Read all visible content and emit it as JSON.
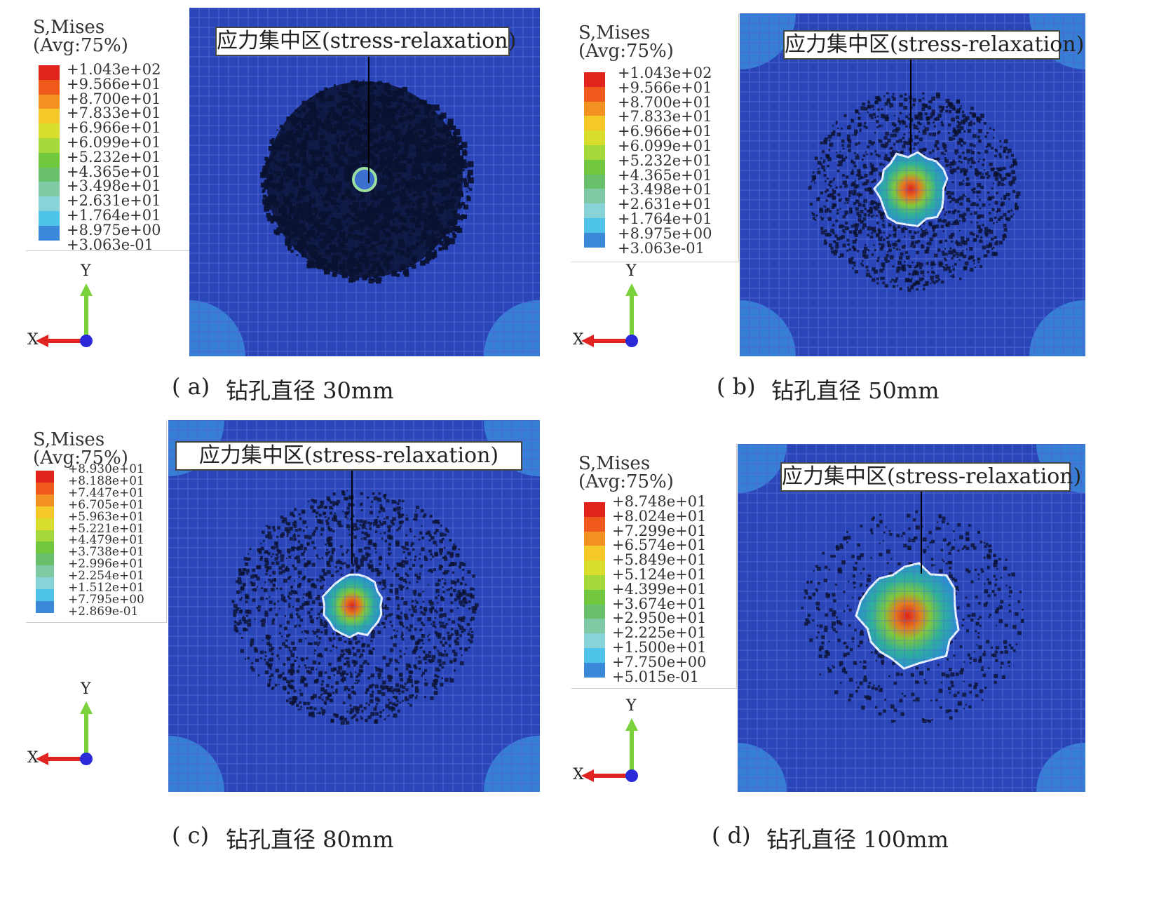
{
  "annotation": "应力集中区(stress-relaxation)",
  "axis": {
    "x": "X",
    "y": "Y"
  },
  "colors": {
    "mesh_bg": "#2a45b8",
    "mesh_line": "#4d66d6",
    "light_region": "#3a8ad8",
    "dark_dots": "#0b1230",
    "outline": "#e8f3ff",
    "arrow_x": "#e0241f",
    "arrow_y": "#7bd13c",
    "axis_origin": "#2a2ad8",
    "legend_scale": [
      "#e0231c",
      "#ef5a1c",
      "#f59022",
      "#f5c82a",
      "#d9de2e",
      "#a5d83a",
      "#72c83c",
      "#69c06a",
      "#7fc9a4",
      "#88d3d8",
      "#4ec4ea",
      "#3a88d8",
      "#2a45b8"
    ]
  },
  "panels": [
    {
      "id": "a",
      "legend_title": "S,Mises",
      "legend_subtitle": "(Avg:75%)",
      "legend_values": [
        "+1.043e+02",
        "+9.566e+01",
        "+8.700e+01",
        "+7.833e+01",
        "+6.966e+01",
        "+6.099e+01",
        "+5.232e+01",
        "+4.365e+01",
        "+3.498e+01",
        "+2.631e+01",
        "+1.764e+01",
        "+8.975e+00",
        "+3.063e-01"
      ],
      "caption_label": "( a)",
      "caption_text": "钻孔直径 30mm"
    },
    {
      "id": "b",
      "legend_title": "S,Mises",
      "legend_subtitle": "(Avg:75%)",
      "legend_values": [
        "+1.043e+02",
        "+9.566e+01",
        "+8.700e+01",
        "+7.833e+01",
        "+6.966e+01",
        "+6.099e+01",
        "+5.232e+01",
        "+4.365e+01",
        "+3.498e+01",
        "+2.631e+01",
        "+1.764e+01",
        "+8.975e+00",
        "+3.063e-01"
      ],
      "caption_label": "( b)",
      "caption_text": "钻孔直径 50mm"
    },
    {
      "id": "c",
      "legend_title": "S,Mises",
      "legend_subtitle": "(Avg:75%)",
      "legend_values": [
        "+8.930e+01",
        "+8.188e+01",
        "+7.447e+01",
        "+6.705e+01",
        "+5.963e+01",
        "+5.221e+01",
        "+4.479e+01",
        "+3.738e+01",
        "+2.996e+01",
        "+2.254e+01",
        "+1.512e+01",
        "+7.795e+00",
        "+2.869e-01"
      ],
      "caption_label": "( c)",
      "caption_text": "钻孔直径 80mm"
    },
    {
      "id": "d",
      "legend_title": "S,Mises",
      "legend_subtitle": "(Avg:75%)",
      "legend_values": [
        "+8.748e+01",
        "+8.024e+01",
        "+7.299e+01",
        "+6.574e+01",
        "+5.849e+01",
        "+5.124e+01",
        "+4.399e+01",
        "+3.674e+01",
        "+2.950e+01",
        "+2.225e+01",
        "+1.500e+01",
        "+7.750e+00",
        "+5.015e-01"
      ],
      "caption_label": "( d)",
      "caption_text": "钻孔直径 100mm"
    }
  ]
}
